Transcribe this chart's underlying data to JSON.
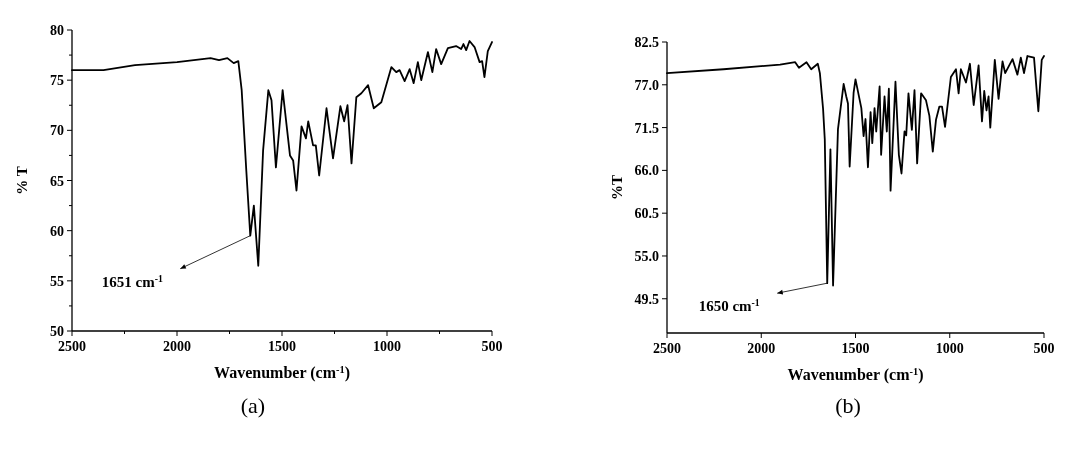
{
  "chart_data": [
    {
      "type": "line",
      "xlabel": "Wavenumber (cm$^{-1}$)",
      "ylabel": "% T",
      "xlim": [
        2500,
        500
      ],
      "ylim": [
        50,
        80
      ],
      "xticks": [
        2500,
        {
          "value": 2250,
          "label": null
        },
        2000,
        {
          "value": 1750,
          "label": null
        },
        1500,
        {
          "value": 1250,
          "label": null
        },
        1000,
        {
          "value": 750,
          "label": null
        },
        500
      ],
      "yticks": [
        50,
        {
          "value": 52.5,
          "label": null
        },
        55,
        {
          "value": 57.5,
          "label": null
        },
        60,
        {
          "value": 62.5,
          "label": null
        },
        65,
        {
          "value": 67.5,
          "label": null
        },
        70,
        {
          "value": 72.5,
          "label": null
        },
        75,
        {
          "value": 77.5,
          "label": null
        },
        80
      ],
      "series": [
        {
          "color": "#000000",
          "x": [
            2500,
            2350,
            2200,
            2000,
            1880,
            1840,
            1800,
            1760,
            1730,
            1708,
            1692,
            1670,
            1651,
            1634,
            1613,
            1590,
            1565,
            1550,
            1529,
            1497,
            1462,
            1447,
            1431,
            1407,
            1386,
            1375,
            1352,
            1339,
            1323,
            1288,
            1257,
            1222,
            1204,
            1188,
            1169,
            1146,
            1122,
            1090,
            1063,
            1027,
            979,
            956,
            940,
            916,
            892,
            873,
            853,
            837,
            805,
            784,
            766,
            742,
            710,
            671,
            647,
            636,
            623,
            607,
            583,
            559,
            547,
            536,
            520,
            500
          ],
          "values": [
            76.0,
            76.0,
            76.5,
            76.8,
            77.1,
            77.2,
            77.0,
            77.2,
            76.7,
            76.9,
            74.0,
            66.0,
            59.5,
            62.5,
            56.5,
            68.0,
            74.0,
            73.0,
            66.3,
            74.0,
            67.5,
            67.0,
            64.0,
            70.4,
            69.2,
            70.9,
            68.5,
            68.5,
            65.5,
            72.2,
            67.2,
            72.4,
            70.9,
            72.5,
            66.7,
            73.3,
            73.7,
            74.5,
            72.2,
            72.8,
            76.3,
            75.8,
            76.0,
            74.9,
            76.1,
            74.7,
            76.8,
            75.0,
            77.8,
            75.8,
            78.1,
            76.6,
            78.2,
            78.4,
            78.1,
            78.6,
            78.0,
            78.9,
            78.3,
            76.8,
            76.9,
            75.3,
            77.9,
            78.8
          ]
        }
      ],
      "annotations": [
        {
          "text": "1651 cm$^{-1}$",
          "x": 1651,
          "y": 59.5
        },
        "(a)"
      ]
    },
    {
      "type": "line",
      "xlabel": "Wavenumber (cm$^{-1}$)",
      "ylabel": "%T",
      "xlim": [
        2500,
        500
      ],
      "ylim": [
        45.1,
        82.5
      ],
      "xticks": [
        2500,
        2000,
        1500,
        1000,
        500
      ],
      "yticks": [
        {
          "value": 49.5,
          "label": "49.5"
        },
        {
          "value": 55,
          "label": "55.0"
        },
        {
          "value": 60.5,
          "label": "60.5"
        },
        {
          "value": 66,
          "label": "66.0"
        },
        {
          "value": 71.5,
          "label": "71.5"
        },
        {
          "value": 77,
          "label": "77.0"
        },
        {
          "value": 82.5,
          "label": "82.5"
        }
      ],
      "series": [
        {
          "color": "#000000",
          "x": [
            2500,
            2200,
            1900,
            1820,
            1800,
            1760,
            1735,
            1700,
            1689,
            1672,
            1663,
            1650,
            1633,
            1619,
            1593,
            1563,
            1549,
            1540,
            1531,
            1510,
            1500,
            1469,
            1457,
            1447,
            1434,
            1420,
            1411,
            1399,
            1390,
            1372,
            1364,
            1346,
            1334,
            1323,
            1314,
            1288,
            1270,
            1256,
            1240,
            1231,
            1219,
            1201,
            1187,
            1173,
            1152,
            1126,
            1108,
            1090,
            1073,
            1055,
            1041,
            1025,
            994,
            967,
            953,
            941,
            914,
            893,
            873,
            847,
            829,
            817,
            805,
            794,
            785,
            761,
            741,
            720,
            706,
            667,
            641,
            623,
            606,
            588,
            553,
            530,
            512,
            500
          ],
          "values": [
            78.5,
            79.0,
            79.6,
            79.9,
            79.2,
            79.9,
            79.0,
            79.7,
            78.5,
            73.9,
            70.0,
            51.5,
            68.7,
            51.2,
            71.3,
            77.1,
            75.5,
            74.6,
            66.5,
            76.0,
            77.7,
            74.0,
            70.4,
            72.6,
            66.4,
            73.5,
            69.5,
            74.0,
            71.0,
            76.8,
            68.0,
            75.5,
            71.0,
            76.5,
            63.4,
            77.4,
            68.0,
            65.6,
            71.0,
            70.5,
            75.9,
            71.2,
            76.3,
            66.9,
            75.9,
            75.0,
            73.0,
            68.4,
            72.5,
            74.2,
            74.2,
            71.6,
            78.0,
            79.0,
            75.9,
            79.0,
            77.3,
            79.7,
            74.4,
            79.5,
            72.3,
            76.2,
            73.7,
            75.5,
            71.5,
            80.2,
            75.2,
            80.0,
            78.5,
            80.3,
            78.3,
            80.5,
            78.5,
            80.7,
            80.5,
            73.6,
            80.2,
            80.7
          ]
        }
      ],
      "annotations": [
        {
          "text": "1650 cm$^{-1}$",
          "x": 1650,
          "y": 51.5
        },
        "(b)"
      ]
    }
  ]
}
